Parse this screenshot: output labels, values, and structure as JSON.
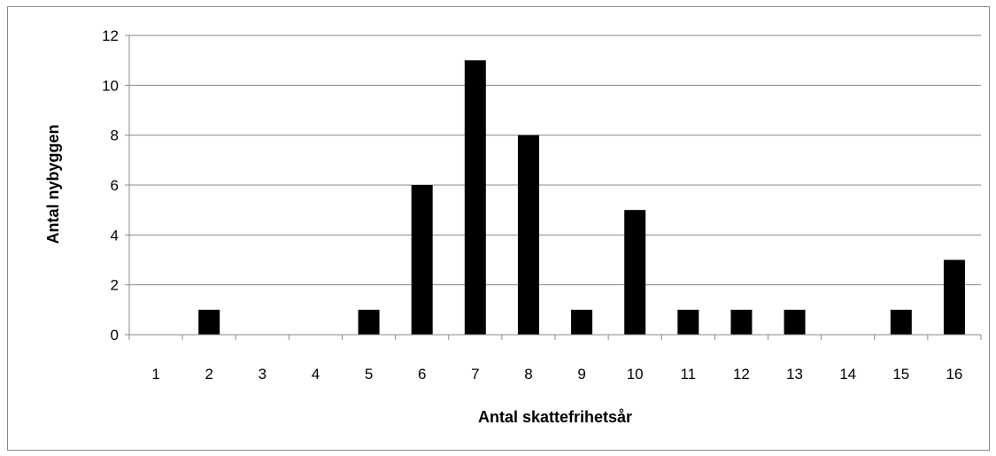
{
  "chart_data": {
    "type": "bar",
    "title": "",
    "xlabel": "Antal skattefrihetsår",
    "ylabel": "Antal nybyggen",
    "categories": [
      "1",
      "2",
      "3",
      "4",
      "5",
      "6",
      "7",
      "8",
      "9",
      "10",
      "11",
      "12",
      "13",
      "14",
      "15",
      "16"
    ],
    "values": [
      0,
      1,
      0,
      0,
      1,
      6,
      11,
      8,
      1,
      5,
      1,
      1,
      1,
      0,
      1,
      3
    ],
    "ylim": [
      0,
      12
    ],
    "yticks": [
      "0",
      "2",
      "4",
      "6",
      "8",
      "10",
      "12"
    ],
    "grid": true,
    "legend": "none",
    "colors": {
      "bar": "#000000",
      "grid": "#8a8a8a",
      "axis": "#8a8a8a"
    }
  }
}
